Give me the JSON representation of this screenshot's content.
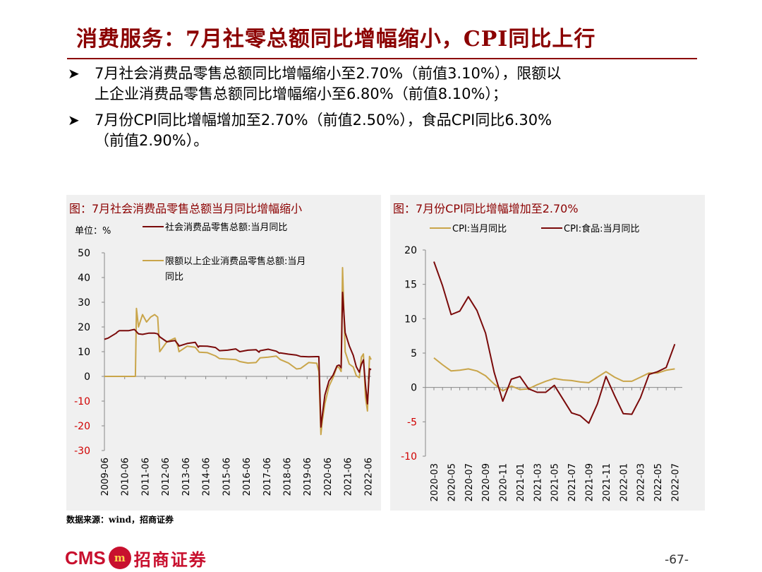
{
  "title": "消费服务：7月社零总额同比增幅缩小，CPI同比上行",
  "bullets": [
    {
      "line1": "7月社会消费品零售总额同比增幅缩小至2.70%（前值3.10%），限额以",
      "line2": "上企业消费品零售总额同比增幅缩小至6.80%（前值8.10%）；"
    },
    {
      "line1": "7月份CPI同比增幅增加至2.70%（前值2.50%），食品CPI同比6.30%",
      "line2": "（前值2.90%）。"
    }
  ],
  "bullet_marker": "➤",
  "source": "数据来源：wind，招商证券",
  "logo": {
    "en": "CMS",
    "badge": "m",
    "cn": "招商证券"
  },
  "page_number": "-67-",
  "colors": {
    "accent": "#8B0000",
    "series_dark": "#7a0a0a",
    "series_gold": "#c9a54a",
    "panel_bg": "#f0f0f0"
  },
  "chart_data": [
    {
      "type": "line",
      "title": "图：7月社会消费品零售总额当月同比增幅缩小",
      "unit_label": "单位：%",
      "ylim": [
        -30,
        50
      ],
      "yticks": [
        -30,
        -20,
        -10,
        0,
        10,
        20,
        30,
        40,
        50
      ],
      "xlim": [
        2009.42,
        2022.58
      ],
      "xtick_labels": [
        "2009-06",
        "2010-06",
        "2011-06",
        "2012-06",
        "2013-06",
        "2014-06",
        "2015-06",
        "2016-06",
        "2017-06",
        "2018-06",
        "2019-06",
        "2020-06",
        "2021-06",
        "2022-06"
      ],
      "legend_position": "top-left",
      "series": [
        {
          "name": "社会消费品零售总额:当月同比",
          "color": "#7a0a0a",
          "x": [
            2009.42,
            2009.6,
            2009.8,
            2010.0,
            2010.05,
            2010.15,
            2010.3,
            2010.6,
            2010.9,
            2011.1,
            2011.3,
            2011.6,
            2011.9,
            2012.05,
            2012.15,
            2012.5,
            2012.9,
            2013.05,
            2013.1,
            2013.5,
            2013.9,
            2014.05,
            2014.1,
            2014.5,
            2014.9,
            2015.05,
            2015.1,
            2015.5,
            2015.9,
            2016.05,
            2016.1,
            2016.5,
            2016.9,
            2017.05,
            2017.1,
            2017.5,
            2017.9,
            2018.05,
            2018.1,
            2018.5,
            2018.9,
            2019.05,
            2019.1,
            2019.5,
            2019.9,
            2020.0,
            2020.1,
            2020.17,
            2020.3,
            2020.5,
            2020.7,
            2020.9,
            2021.0,
            2021.1,
            2021.17,
            2021.3,
            2021.5,
            2021.7,
            2021.85,
            2022.0,
            2022.1,
            2022.2,
            2022.3,
            2022.4,
            2022.5,
            2022.58
          ],
          "y": [
            15,
            15.5,
            16.5,
            17.5,
            17.9,
            18.5,
            18.5,
            18.5,
            19,
            17.2,
            17,
            17.5,
            17.5,
            17.2,
            16,
            14,
            14.5,
            13,
            12.3,
            13.3,
            13.8,
            11.8,
            12.3,
            12.2,
            11.7,
            10.7,
            10.4,
            10.6,
            11.1,
            10.3,
            10,
            10.6,
            10.8,
            9.8,
            10.4,
            11,
            10.2,
            9.4,
            9.5,
            9,
            8.6,
            8.2,
            8.1,
            7.9,
            8,
            8,
            -20.5,
            -15.8,
            -7.5,
            -1.8,
            0.5,
            4.3,
            4.6,
            3.5,
            34,
            17.7,
            12.4,
            8.5,
            3.9,
            1.7,
            4.9,
            6.7,
            -3.5,
            -11.1,
            3.1,
            2.7
          ]
        },
        {
          "name": "限额以上企业消费品零售总额:当月同比",
          "color": "#c9a54a",
          "x": [
            2009.42,
            2009.8,
            2010.3,
            2010.5,
            2010.95,
            2011.0,
            2011.1,
            2011.3,
            2011.5,
            2011.7,
            2011.9,
            2012.05,
            2012.15,
            2012.5,
            2012.9,
            2013.05,
            2013.1,
            2013.5,
            2013.9,
            2014.1,
            2014.5,
            2014.9,
            2015.1,
            2015.5,
            2015.9,
            2016.1,
            2016.5,
            2016.9,
            2017.1,
            2017.5,
            2017.9,
            2018.1,
            2018.5,
            2018.9,
            2019.1,
            2019.5,
            2019.9,
            2020.0,
            2020.1,
            2020.17,
            2020.3,
            2020.5,
            2020.7,
            2020.9,
            2021.0,
            2021.1,
            2021.17,
            2021.3,
            2021.5,
            2021.7,
            2021.85,
            2022.0,
            2022.1,
            2022.2,
            2022.3,
            2022.4,
            2022.5,
            2022.58
          ],
          "y": [
            0,
            0,
            0,
            0,
            0,
            27.5,
            20,
            25,
            22,
            24,
            25,
            24,
            10,
            14,
            15.5,
            12,
            10,
            12.2,
            11.8,
            9.8,
            9.6,
            8.3,
            7.2,
            7,
            6.8,
            6,
            5.4,
            5.6,
            7.5,
            7.8,
            8.2,
            6.8,
            5.4,
            3,
            3.2,
            5.6,
            5.3,
            2,
            -23.5,
            -18,
            -11,
            -4,
            -0.5,
            4,
            3.5,
            2,
            44,
            10,
            5,
            3.8,
            0.3,
            -0.5,
            7.8,
            9.1,
            -8.5,
            -14,
            8.1,
            6.8
          ]
        }
      ]
    },
    {
      "type": "line",
      "title": "图：7月份CPI同比增幅增加至2.70%",
      "ylim": [
        -10,
        20
      ],
      "yticks": [
        -10,
        -5,
        0,
        5,
        10,
        15,
        20
      ],
      "categories": [
        "2020-03",
        "2020-04",
        "2020-05",
        "2020-06",
        "2020-07",
        "2020-08",
        "2020-09",
        "2020-10",
        "2020-11",
        "2020-12",
        "2021-01",
        "2021-02",
        "2021-03",
        "2021-04",
        "2021-05",
        "2021-06",
        "2021-07",
        "2021-08",
        "2021-09",
        "2021-10",
        "2021-11",
        "2021-12",
        "2022-01",
        "2022-02",
        "2022-03",
        "2022-04",
        "2022-05",
        "2022-06",
        "2022-07"
      ],
      "tick_labels": [
        "2020-03",
        "2020-05",
        "2020-07",
        "2020-09",
        "2020-11",
        "2021-01",
        "2021-03",
        "2021-05",
        "2021-07",
        "2021-09",
        "2021-11",
        "2022-01",
        "2022-03",
        "2022-05",
        "2022-07"
      ],
      "legend_position": "top",
      "series": [
        {
          "name": "CPI:当月同比",
          "color": "#c9a54a",
          "values": [
            4.3,
            3.3,
            2.4,
            2.5,
            2.7,
            2.4,
            1.7,
            0.5,
            -0.5,
            0.2,
            -0.3,
            -0.2,
            0.4,
            0.9,
            1.3,
            1.1,
            1.0,
            0.8,
            0.7,
            1.5,
            2.3,
            1.5,
            0.9,
            0.9,
            1.5,
            2.1,
            2.1,
            2.5,
            2.7
          ]
        },
        {
          "name": "CPI:食品:当月同比",
          "color": "#7a0a0a",
          "values": [
            18.3,
            14.8,
            10.6,
            11.1,
            13.2,
            11.2,
            7.9,
            2.2,
            -2.0,
            1.2,
            1.6,
            -0.2,
            -0.7,
            -0.7,
            0.3,
            -1.7,
            -3.7,
            -4.1,
            -5.2,
            -2.4,
            1.6,
            -1.2,
            -3.8,
            -3.9,
            -1.5,
            1.9,
            2.3,
            2.9,
            6.3
          ]
        }
      ]
    }
  ]
}
